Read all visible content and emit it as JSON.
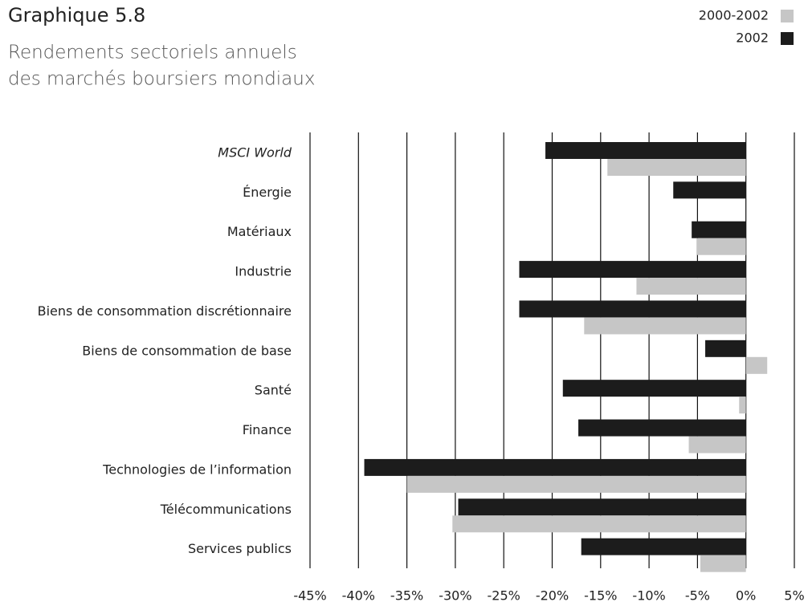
{
  "chart_data": {
    "type": "bar",
    "orientation": "horizontal",
    "title": "Graphique 5.8",
    "subtitle": [
      "Rendements sectoriels annuels",
      "des marchés boursiers mondiaux"
    ],
    "categories": [
      "MSCI World",
      "Énergie",
      "Matériaux",
      "Industrie",
      "Biens de consommation discrétionnaire",
      "Biens de consommation de base",
      "Santé",
      "Finance",
      "Technologies de l’information",
      "Télécommunications",
      "Services publics"
    ],
    "series": [
      {
        "name": "2000-2002",
        "color": "#c6c6c6",
        "values": [
          -14.3,
          0,
          -5.1,
          -11.3,
          -16.7,
          2.2,
          -0.7,
          -5.9,
          -35.0,
          -30.3,
          -4.7
        ]
      },
      {
        "name": "2002",
        "color": "#1c1c1c",
        "values": [
          -20.7,
          -7.5,
          -5.6,
          -23.4,
          -23.4,
          -4.2,
          -18.9,
          -17.3,
          -39.4,
          -29.7,
          -17.0
        ]
      }
    ],
    "xlim": [
      -45,
      5
    ],
    "xticks": [
      {
        "value": -45,
        "label": "-45%"
      },
      {
        "value": -40,
        "label": "-40%"
      },
      {
        "value": -35,
        "label": "-35%"
      },
      {
        "value": -30,
        "label": "-30%"
      },
      {
        "value": -25,
        "label": "-25%"
      },
      {
        "value": -20,
        "label": "-20%"
      },
      {
        "value": -15,
        "label": "-15%"
      },
      {
        "value": -10,
        "label": "-10%"
      },
      {
        "value": -5,
        "label": "-5%"
      },
      {
        "value": 0,
        "label": "0%"
      },
      {
        "value": 5,
        "label": "5%"
      }
    ],
    "grid": true,
    "legend": "top-right"
  }
}
